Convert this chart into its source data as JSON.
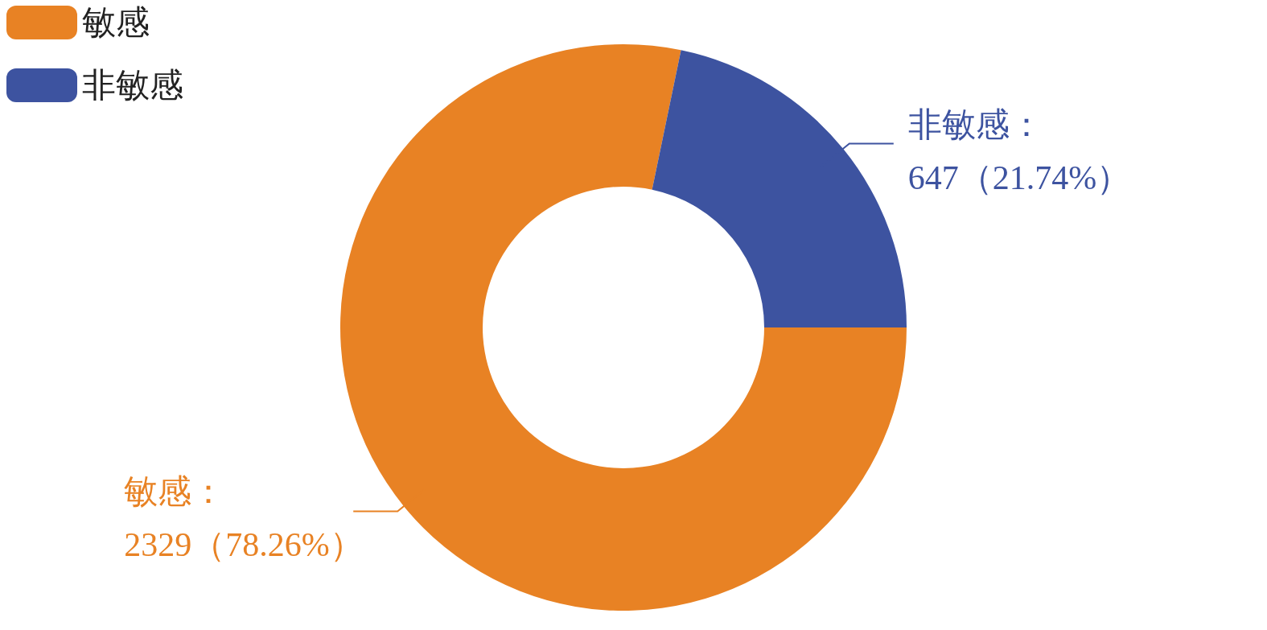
{
  "chart_data": {
    "type": "donut",
    "categories": [
      "敏感",
      "非敏感"
    ],
    "values": [
      2329,
      647
    ],
    "colors": [
      "#e88224",
      "#3d53a0"
    ],
    "value_labels": [
      "敏感：\n2329（78.26%）",
      "非敏感：\n647（21.74%）"
    ],
    "legend": "top left"
  }
}
